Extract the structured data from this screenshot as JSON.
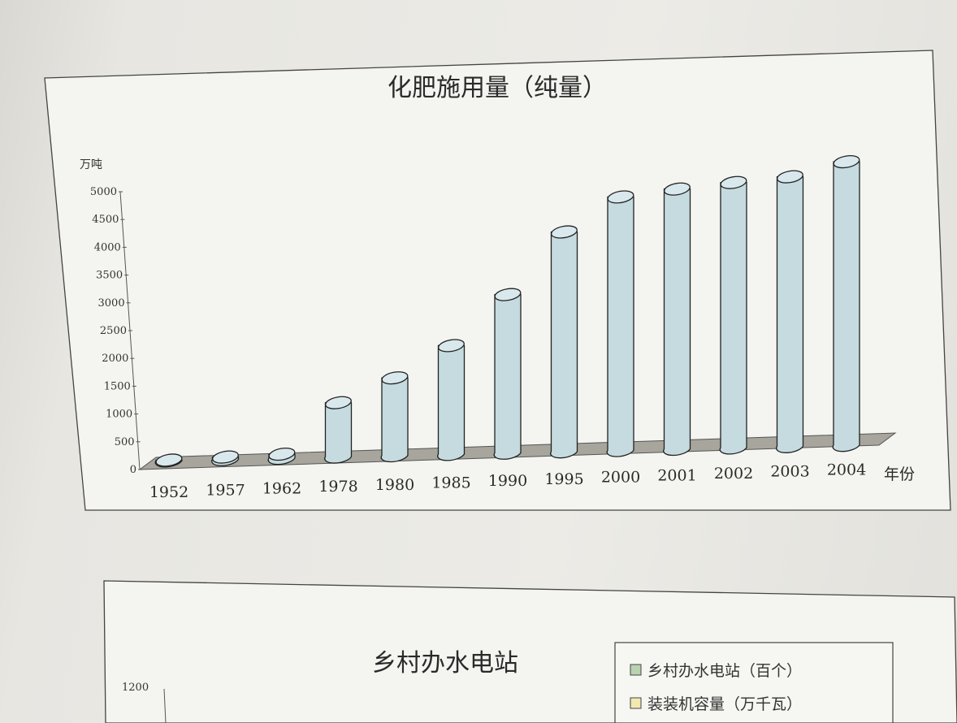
{
  "chart_data": [
    {
      "type": "bar",
      "title": "化肥施用量（纯量）",
      "ylabel": "万吨",
      "xlabel": "年份",
      "ylim": [
        0,
        5000
      ],
      "yticks": [
        "0",
        "500",
        "1000",
        "1500",
        "2000",
        "2500",
        "3000",
        "3500",
        "4000",
        "4500",
        "5000"
      ],
      "categories": [
        "1952",
        "1957",
        "1962",
        "1978",
        "1980",
        "1985",
        "1990",
        "1995",
        "2000",
        "2001",
        "2002",
        "2003",
        "2004"
      ],
      "values": [
        8,
        37,
        63,
        884,
        1269,
        1776,
        2590,
        3594,
        4146,
        4254,
        4339,
        4412,
        4637
      ],
      "bar_color": "#c5dbe0",
      "grid": false
    },
    {
      "type": "bar",
      "title": "乡村办水电站",
      "ytick_top": "1200",
      "legend": [
        "乡村办水电站（百个）",
        "装装机容量（万千瓦）"
      ],
      "legend_colors": [
        "#b9d3b0",
        "#f2e9b0"
      ]
    }
  ]
}
